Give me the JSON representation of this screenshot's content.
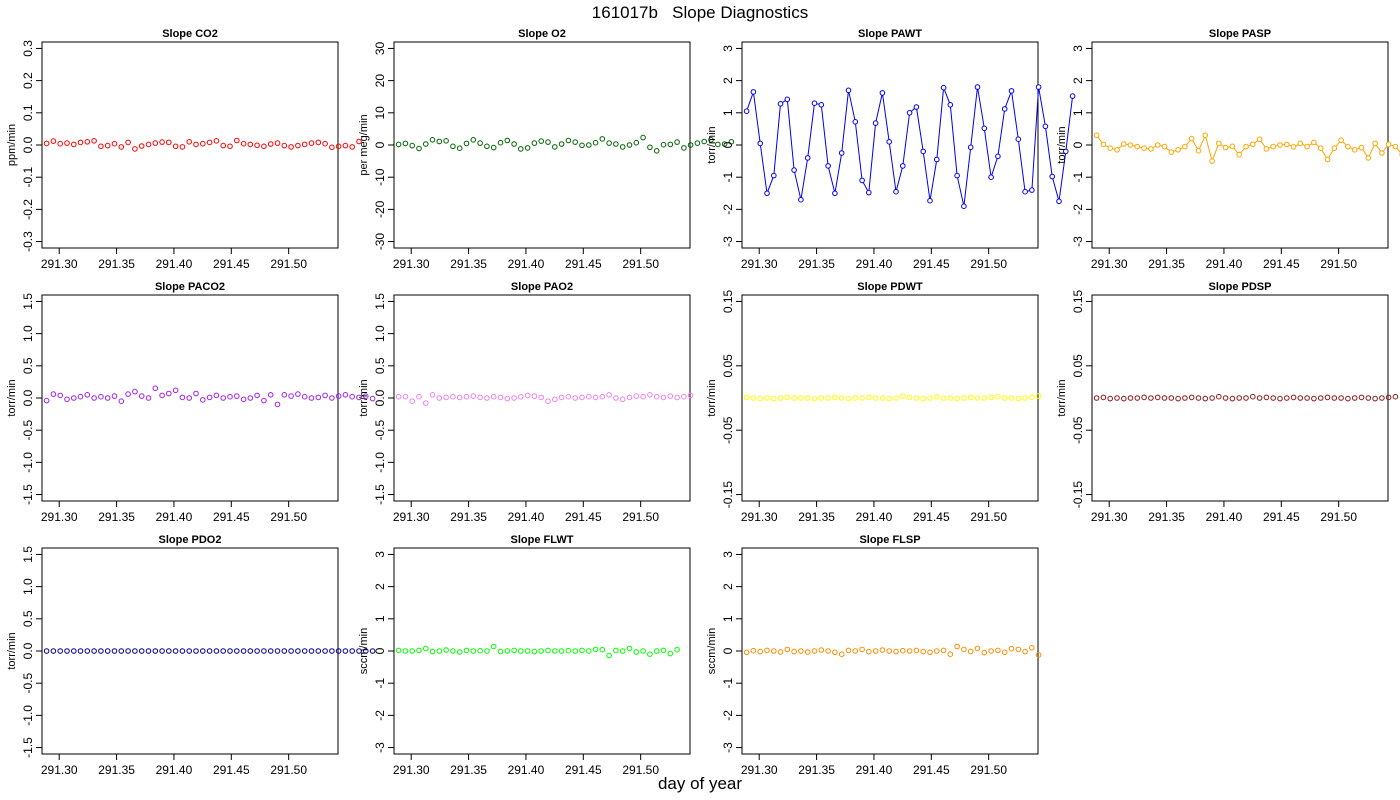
{
  "page": {
    "title": "161017b   Slope Diagnostics",
    "x_axis_label": "day of year"
  },
  "chart_data": [
    {
      "type": "scatter",
      "title": "Slope CO2",
      "ylabel": "ppm/min",
      "color": "#ff0000",
      "ylim": [
        -0.32,
        0.32
      ],
      "yticks": [
        -0.3,
        -0.2,
        -0.1,
        0.0,
        0.1,
        0.2,
        0.3
      ],
      "ytick_labels": [
        "-0.3",
        "-0.2",
        "-0.1",
        "0.0",
        "0.1",
        "0.2",
        "0.3"
      ],
      "xticks": [
        291.3,
        291.35,
        291.4,
        291.45,
        291.5
      ],
      "xtick_labels": [
        "291.30",
        "291.35",
        "291.40",
        "291.45",
        "291.50"
      ],
      "x_start": 291.289,
      "x_step": 0.00592,
      "values": [
        0.005,
        0.012,
        0.004,
        0.006,
        0.002,
        0.008,
        0.01,
        0.013,
        -0.004,
        -0.002,
        0.004,
        -0.006,
        0.008,
        -0.012,
        -0.003,
        0.002,
        0.006,
        0.009,
        0.008,
        -0.004,
        -0.006,
        0.01,
        0.002,
        0.004,
        0.008,
        0.013,
        -0.002,
        -0.004,
        0.014,
        0.004,
        0.002,
        -0.001,
        -0.004,
        0.003,
        0.006,
        -0.002,
        -0.006,
        -0.002,
        0.002,
        0.006,
        0.008,
        0.004,
        -0.007,
        -0.004,
        -0.002,
        -0.006,
        0.011
      ],
      "connected": false
    },
    {
      "type": "scatter",
      "title": "Slope O2",
      "ylabel": "per meg/min",
      "color": "#006400",
      "ylim": [
        -32,
        32
      ],
      "yticks": [
        -30,
        -20,
        -10,
        0,
        10,
        20,
        30
      ],
      "ytick_labels": [
        "-30",
        "-20",
        "-10",
        "0",
        "10",
        "20",
        "30"
      ],
      "xticks": [
        291.3,
        291.35,
        291.4,
        291.45,
        291.5
      ],
      "xtick_labels": [
        "291.30",
        "291.35",
        "291.40",
        "291.45",
        "291.50"
      ],
      "x_start": 291.289,
      "x_step": 0.00592,
      "values": [
        0.2,
        0.5,
        -0.2,
        -1.1,
        0.3,
        1.6,
        1.1,
        1.3,
        -0.4,
        -1.0,
        0.5,
        1.6,
        0.6,
        -0.4,
        -0.8,
        0.7,
        1.4,
        0.3,
        -1.2,
        -0.9,
        0.6,
        1.2,
        0.9,
        -0.6,
        0.3,
        1.4,
        0.9,
        -0.1,
        0.0,
        0.7,
        1.9,
        0.6,
        0.3,
        -0.6,
        0.0,
        0.7,
        2.3,
        -0.7,
        -1.8,
        0.1,
        0.2,
        0.9,
        -0.9,
        0.0,
        0.6,
        1.1,
        1.6,
        0.2,
        0.3,
        1.0
      ],
      "connected": false
    },
    {
      "type": "line",
      "title": "Slope PAWT",
      "ylabel": "torr/min",
      "color": "#0000ee",
      "ylim": [
        -3.2,
        3.2
      ],
      "yticks": [
        -3,
        -2,
        -1,
        0,
        1,
        2,
        3
      ],
      "ytick_labels": [
        "-3",
        "-2",
        "-1",
        "0",
        "1",
        "2",
        "3"
      ],
      "xticks": [
        291.3,
        291.35,
        291.4,
        291.45,
        291.5
      ],
      "xtick_labels": [
        "291.30",
        "291.35",
        "291.40",
        "291.45",
        "291.50"
      ],
      "x_start": 291.289,
      "x_step": 0.00592,
      "values": [
        1.05,
        1.65,
        0.05,
        -1.5,
        -0.95,
        1.28,
        1.42,
        -0.78,
        -1.7,
        -0.4,
        1.3,
        1.25,
        -0.65,
        -1.5,
        -0.25,
        1.7,
        0.72,
        -1.1,
        -1.48,
        0.68,
        1.62,
        0.1,
        -1.45,
        -0.65,
        1.0,
        1.18,
        -0.2,
        -1.73,
        -0.45,
        1.78,
        1.25,
        -0.95,
        -1.9,
        -0.07,
        1.8,
        0.52,
        -1.0,
        -0.35,
        1.12,
        1.68,
        0.18,
        -1.45,
        -1.4,
        1.8,
        0.58,
        -0.98,
        -1.75,
        -0.2,
        1.52
      ],
      "connected": true
    },
    {
      "type": "line",
      "title": "Slope PASP",
      "ylabel": "torr/min",
      "color": "#ffa500",
      "ylim": [
        -3.2,
        3.2
      ],
      "yticks": [
        -3,
        -2,
        -1,
        0,
        1,
        2,
        3
      ],
      "ytick_labels": [
        "-3",
        "-2",
        "-1",
        "0",
        "1",
        "2",
        "3"
      ],
      "xticks": [
        291.3,
        291.35,
        291.4,
        291.45,
        291.5
      ],
      "xtick_labels": [
        "291.30",
        "291.35",
        "291.40",
        "291.45",
        "291.50"
      ],
      "x_start": 291.289,
      "x_step": 0.00592,
      "values": [
        0.3,
        0.02,
        -0.1,
        -0.15,
        0.03,
        0.0,
        -0.05,
        -0.1,
        -0.12,
        0.0,
        -0.05,
        -0.22,
        -0.15,
        -0.05,
        0.2,
        -0.18,
        0.3,
        -0.5,
        0.05,
        -0.08,
        -0.04,
        -0.3,
        -0.05,
        0.02,
        0.18,
        -0.12,
        -0.05,
        0.0,
        0.02,
        -0.06,
        0.05,
        -0.05,
        0.08,
        -0.1,
        -0.45,
        -0.1,
        0.15,
        -0.05,
        -0.15,
        -0.08,
        -0.4,
        0.05,
        -0.25,
        0.02,
        -0.05,
        -0.3,
        0.35
      ],
      "connected": true
    },
    {
      "type": "scatter",
      "title": "Slope PACO2",
      "ylabel": "torr/min",
      "color": "#a020f0",
      "ylim": [
        -1.6,
        1.6
      ],
      "yticks": [
        -1.5,
        -1.0,
        -0.5,
        0.0,
        0.5,
        1.0,
        1.5
      ],
      "ytick_labels": [
        "-1.5",
        "-1.0",
        "-0.5",
        "0.0",
        "0.5",
        "1.0",
        "1.5"
      ],
      "xticks": [
        291.3,
        291.35,
        291.4,
        291.45,
        291.5
      ],
      "xtick_labels": [
        "291.30",
        "291.35",
        "291.40",
        "291.45",
        "291.50"
      ],
      "x_start": 291.289,
      "x_step": 0.00592,
      "values": [
        -0.04,
        0.06,
        0.04,
        -0.02,
        0.0,
        0.02,
        0.05,
        0.0,
        0.02,
        0.0,
        0.03,
        -0.05,
        0.06,
        0.1,
        0.03,
        0.0,
        0.15,
        0.04,
        0.07,
        0.12,
        0.01,
        0.0,
        0.07,
        -0.03,
        0.01,
        0.04,
        0.0,
        0.02,
        0.03,
        -0.02,
        0.0,
        0.04,
        -0.04,
        0.05,
        -0.1,
        0.05,
        0.03,
        0.06,
        0.02,
        0.0,
        0.01,
        0.04,
        0.0,
        0.03,
        0.05,
        0.02,
        0.01,
        0.03,
        -0.01
      ],
      "connected": false
    },
    {
      "type": "scatter",
      "title": "Slope PAO2",
      "ylabel": "torr/min",
      "color": "#ee82ee",
      "ylim": [
        -1.6,
        1.6
      ],
      "yticks": [
        -1.5,
        -1.0,
        -0.5,
        0.0,
        0.5,
        1.0,
        1.5
      ],
      "ytick_labels": [
        "-1.5",
        "-1.0",
        "-0.5",
        "0.0",
        "0.5",
        "1.0",
        "1.5"
      ],
      "xticks": [
        291.3,
        291.35,
        291.4,
        291.45,
        291.5
      ],
      "xtick_labels": [
        "291.30",
        "291.35",
        "291.40",
        "291.45",
        "291.50"
      ],
      "x_start": 291.289,
      "x_step": 0.00592,
      "values": [
        0.02,
        0.02,
        -0.05,
        0.02,
        -0.08,
        0.05,
        0.0,
        0.01,
        0.02,
        0.01,
        0.02,
        0.03,
        0.01,
        0.0,
        0.02,
        0.01,
        -0.01,
        0.0,
        0.02,
        0.04,
        0.03,
        0.01,
        -0.05,
        -0.02,
        0.01,
        0.02,
        0.0,
        0.01,
        0.02,
        0.01,
        0.02,
        0.05,
        0.0,
        -0.02,
        0.01,
        0.03,
        0.02,
        0.05,
        0.02,
        0.01,
        0.03,
        0.01,
        0.02,
        0.04
      ],
      "connected": false
    },
    {
      "type": "scatter",
      "title": "Slope PDWT",
      "ylabel": "torr/min",
      "color": "#ffff00",
      "ylim": [
        -0.16,
        0.16
      ],
      "yticks": [
        -0.15,
        -0.05,
        0.05,
        0.15
      ],
      "ytick_labels": [
        "-0.15",
        "-0.05",
        "0.05",
        "0.15"
      ],
      "xticks": [
        291.3,
        291.35,
        291.4,
        291.45,
        291.5
      ],
      "xtick_labels": [
        "291.30",
        "291.35",
        "291.40",
        "291.45",
        "291.50"
      ],
      "x_start": 291.289,
      "x_step": 0.00592,
      "values": [
        0.001,
        0.0,
        -0.001,
        0.0,
        -0.001,
        0.0,
        0.001,
        0.0,
        0.0,
        0.0,
        -0.001,
        0.0,
        0.0,
        0.001,
        0.0,
        -0.001,
        0.0,
        0.0,
        0.001,
        0.0,
        0.0,
        -0.001,
        0.0,
        0.003,
        0.001,
        0.0,
        -0.001,
        0.0,
        0.002,
        0.0,
        0.0,
        -0.001,
        0.0,
        0.001,
        0.0,
        0.0,
        0.001,
        0.002,
        0.0,
        0.0,
        -0.001,
        0.0,
        0.001,
        0.003
      ],
      "connected": false
    },
    {
      "type": "scatter",
      "title": "Slope PDSP",
      "ylabel": "torr/min",
      "color": "#8b1a1a",
      "ylim": [
        -0.16,
        0.16
      ],
      "yticks": [
        -0.15,
        -0.05,
        0.05,
        0.15
      ],
      "ytick_labels": [
        "-0.15",
        "-0.05",
        "0.05",
        "0.15"
      ],
      "xticks": [
        291.3,
        291.35,
        291.4,
        291.45,
        291.5
      ],
      "xtick_labels": [
        "291.30",
        "291.35",
        "291.40",
        "291.45",
        "291.50"
      ],
      "x_start": 291.289,
      "x_step": 0.00592,
      "values": [
        0.0,
        0.001,
        -0.001,
        0.0,
        -0.001,
        0.0,
        0.0,
        0.001,
        0.0,
        0.001,
        0.0,
        0.0,
        -0.001,
        0.0,
        0.001,
        0.0,
        -0.001,
        0.0,
        0.002,
        0.0,
        -0.001,
        0.0,
        0.0,
        0.002,
        0.0,
        0.001,
        0.0,
        -0.001,
        0.0,
        0.001,
        0.0,
        0.0,
        -0.001,
        0.0,
        0.001,
        0.0,
        0.0,
        -0.001,
        0.0,
        0.001,
        0.0,
        -0.001,
        0.0,
        0.001,
        0.002
      ],
      "connected": false
    },
    {
      "type": "scatter",
      "title": "Slope PDO2",
      "ylabel": "torr/min",
      "color": "#00008b",
      "ylim": [
        -1.6,
        1.6
      ],
      "yticks": [
        -1.5,
        -1.0,
        -0.5,
        0.0,
        0.5,
        1.0,
        1.5
      ],
      "ytick_labels": [
        "-1.5",
        "-1.0",
        "-0.5",
        "0.0",
        "0.5",
        "1.0",
        "1.5"
      ],
      "xticks": [
        291.3,
        291.35,
        291.4,
        291.45,
        291.5
      ],
      "xtick_labels": [
        "291.30",
        "291.35",
        "291.40",
        "291.45",
        "291.50"
      ],
      "x_start": 291.289,
      "x_step": 0.00592,
      "values": [
        0,
        0,
        0,
        0,
        0,
        0,
        0,
        0,
        0,
        0,
        0,
        0,
        0,
        0,
        0,
        0,
        0,
        0,
        0,
        0,
        0,
        0,
        0,
        0,
        0,
        0,
        0,
        0,
        0,
        0,
        0,
        0,
        0,
        0,
        0,
        0,
        0,
        0,
        0,
        0,
        0,
        0,
        0,
        0,
        0,
        0,
        0,
        0,
        0
      ],
      "connected": false
    },
    {
      "type": "scatter",
      "title": "Slope FLWT",
      "ylabel": "sccm/min",
      "color": "#00ff00",
      "ylim": [
        -3.2,
        3.2
      ],
      "yticks": [
        -3,
        -2,
        -1,
        0,
        1,
        2,
        3
      ],
      "ytick_labels": [
        "-3",
        "-2",
        "-1",
        "0",
        "1",
        "2",
        "3"
      ],
      "xticks": [
        291.3,
        291.35,
        291.4,
        291.45,
        291.5
      ],
      "xtick_labels": [
        "291.30",
        "291.35",
        "291.40",
        "291.45",
        "291.50"
      ],
      "x_start": 291.289,
      "x_step": 0.00592,
      "values": [
        0.02,
        0.0,
        0.0,
        0.02,
        0.08,
        -0.02,
        0.0,
        0.03,
        0.0,
        -0.03,
        0.02,
        0.0,
        0.01,
        0.0,
        0.14,
        -0.02,
        0.0,
        0.02,
        0.0,
        0.0,
        -0.02,
        0.0,
        0.02,
        0.0,
        0.0,
        0.01,
        0.0,
        0.02,
        0.0,
        0.05,
        0.04,
        -0.14,
        0.02,
        0.0,
        0.08,
        -0.03,
        0.0,
        -0.1,
        0.0,
        0.02,
        -0.08,
        0.04
      ],
      "connected": false
    },
    {
      "type": "scatter",
      "title": "Slope FLSP",
      "ylabel": "sccm/min",
      "color": "#ff8c00",
      "ylim": [
        -3.2,
        3.2
      ],
      "yticks": [
        -3,
        -2,
        -1,
        0,
        1,
        2,
        3
      ],
      "ytick_labels": [
        "-3",
        "-2",
        "-1",
        "0",
        "1",
        "2",
        "3"
      ],
      "xticks": [
        291.3,
        291.35,
        291.4,
        291.45,
        291.5
      ],
      "xtick_labels": [
        "291.30",
        "291.35",
        "291.40",
        "291.45",
        "291.50"
      ],
      "x_start": 291.289,
      "x_step": 0.00592,
      "values": [
        -0.04,
        0.01,
        -0.02,
        0.02,
        0.0,
        -0.03,
        0.05,
        -0.02,
        0.0,
        -0.03,
        0.0,
        0.03,
        0.0,
        -0.04,
        -0.1,
        0.02,
        0.0,
        0.05,
        -0.02,
        0.0,
        0.03,
        0.0,
        -0.02,
        0.01,
        0.0,
        0.02,
        -0.02,
        -0.04,
        0.0,
        0.02,
        -0.1,
        0.14,
        0.05,
        -0.02,
        0.08,
        -0.05,
        0.0,
        0.02,
        -0.04,
        0.07,
        0.05,
        -0.02,
        0.1,
        -0.12
      ],
      "connected": false
    }
  ]
}
